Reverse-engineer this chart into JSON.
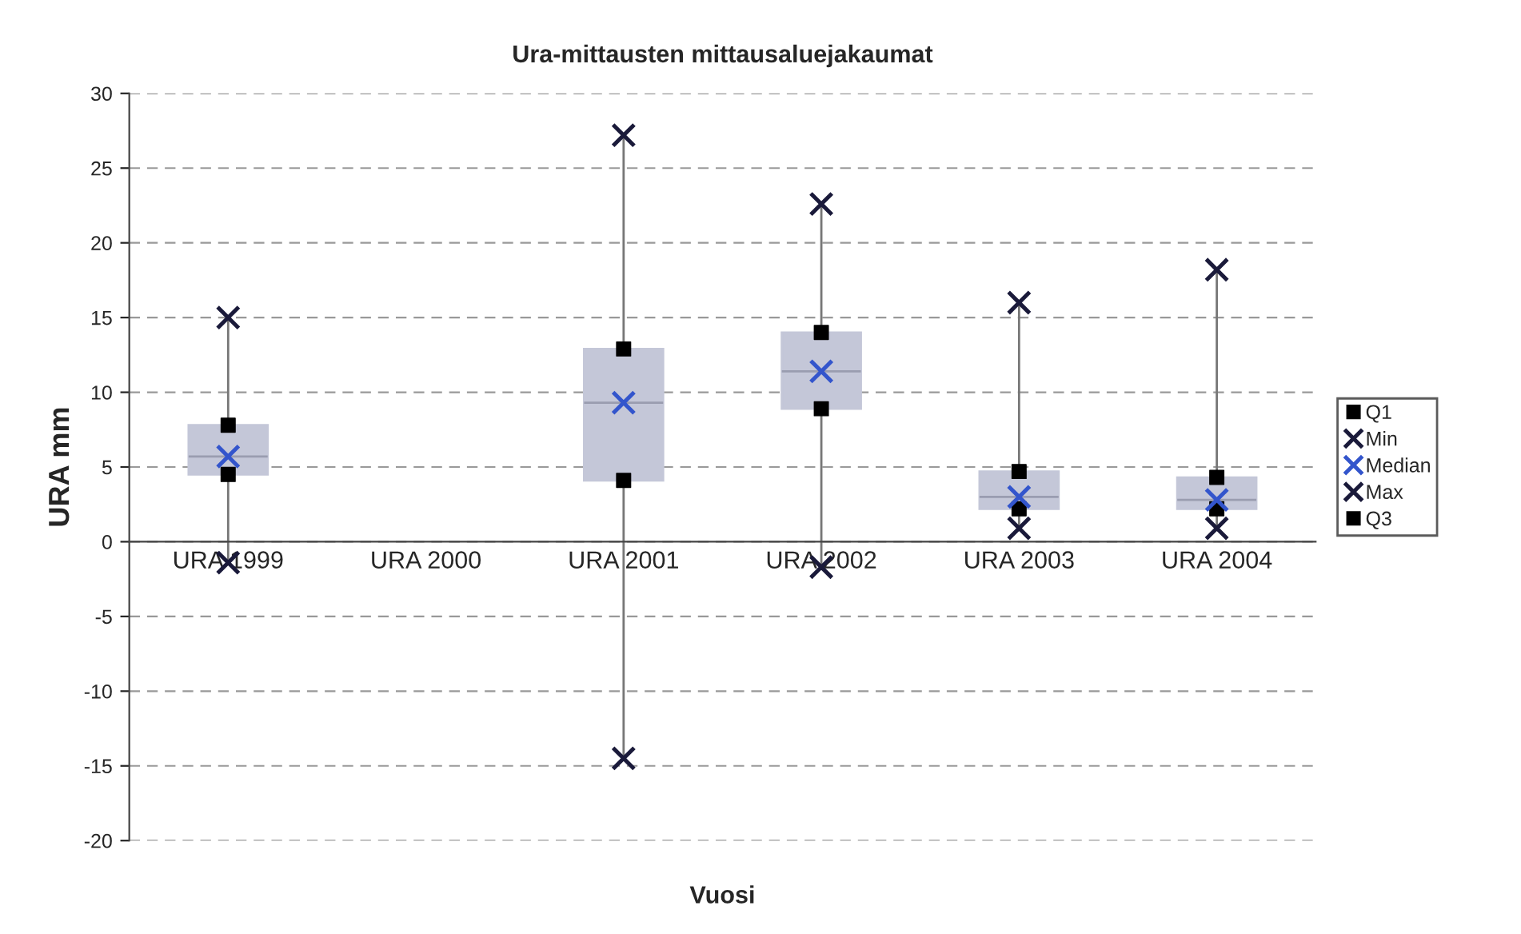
{
  "chart_data": {
    "type": "box",
    "title": "Ura-mittausten mittausaluejakaumat",
    "xlabel": "Vuosi",
    "ylabel": "URA mm",
    "categories": [
      "URA 1999",
      "URA 2000",
      "URA 2001",
      "URA 2002",
      "URA 2003",
      "URA 2004"
    ],
    "boxes": [
      {
        "low": -1.4,
        "q1": 4.5,
        "median": 5.7,
        "q3": 7.8,
        "high": 15
      },
      null,
      {
        "low": -14.5,
        "q1": 4.1,
        "median": 9.3,
        "q3": 12.9,
        "high": 27.2
      },
      {
        "low": -1.7,
        "q1": 8.9,
        "median": 11.4,
        "q3": 14.0,
        "high": 22.6
      },
      {
        "low": 0.9,
        "q1": 2.2,
        "median": 3.0,
        "q3": 4.7,
        "high": 16.0
      },
      {
        "low": 0.9,
        "q1": 2.2,
        "median": 2.8,
        "q3": 4.3,
        "high": 18.2
      }
    ],
    "color": "#c4c7d8",
    "series": [
      {
        "name": "Q1",
        "type": "scatter",
        "marker": "square",
        "color": "#000000",
        "values": [
          4.5,
          null,
          4.1,
          8.9,
          2.2,
          2.2
        ]
      },
      {
        "name": "Min",
        "type": "scatter",
        "marker": "cross",
        "color": "#1a1a3a",
        "values": [
          -1.4,
          null,
          -14.5,
          -1.7,
          0.9,
          0.9
        ]
      },
      {
        "name": "Median",
        "type": "scatter",
        "marker": "cross",
        "color": "#3355cc",
        "values": [
          5.7,
          null,
          9.3,
          11.4,
          3.0,
          2.8
        ]
      },
      {
        "name": "Max",
        "type": "scatter",
        "marker": "cross",
        "color": "#1a1a3a",
        "values": [
          15,
          null,
          27.2,
          22.6,
          16.0,
          18.2
        ]
      },
      {
        "name": "Q3",
        "type": "scatter",
        "marker": "square",
        "color": "#000000",
        "values": [
          7.8,
          null,
          12.9,
          14.0,
          4.7,
          4.3
        ]
      }
    ],
    "ylim": [
      -20,
      30
    ],
    "yticks": [
      -20,
      -15,
      -10,
      -5,
      0,
      5,
      10,
      15,
      20,
      25,
      30
    ],
    "grid": "y",
    "legend": "right"
  }
}
